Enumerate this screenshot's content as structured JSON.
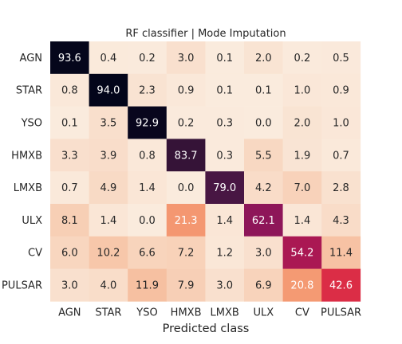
{
  "chart_data": {
    "type": "heatmap",
    "title": "RF classifier | Mode Imputation",
    "xlabel": "Predicted class",
    "ylabel": "",
    "x_categories": [
      "AGN",
      "STAR",
      "YSO",
      "HMXB",
      "LMXB",
      "ULX",
      "CV",
      "PULSAR"
    ],
    "y_categories": [
      "AGN",
      "STAR",
      "YSO",
      "HMXB",
      "LMXB",
      "ULX",
      "CV",
      "PULSAR"
    ],
    "values": [
      [
        93.6,
        0.4,
        0.2,
        3.0,
        0.1,
        2.0,
        0.2,
        0.5
      ],
      [
        0.8,
        94.0,
        2.3,
        0.9,
        0.1,
        0.1,
        1.0,
        0.9
      ],
      [
        0.1,
        3.5,
        92.9,
        0.2,
        0.3,
        0.0,
        2.0,
        1.0
      ],
      [
        3.3,
        3.9,
        0.8,
        83.7,
        0.3,
        5.5,
        1.9,
        0.7
      ],
      [
        0.7,
        4.9,
        1.4,
        0.0,
        79.0,
        4.2,
        7.0,
        2.8
      ],
      [
        8.1,
        1.4,
        0.0,
        21.3,
        1.4,
        62.1,
        1.4,
        4.3
      ],
      [
        6.0,
        10.2,
        6.6,
        7.2,
        1.2,
        3.0,
        54.2,
        11.4
      ],
      [
        3.0,
        4.0,
        11.9,
        7.9,
        3.0,
        6.9,
        20.8,
        42.6
      ]
    ],
    "colormap": "rocket_r",
    "value_range": [
      0,
      94
    ],
    "grid": false,
    "legend": "none"
  }
}
